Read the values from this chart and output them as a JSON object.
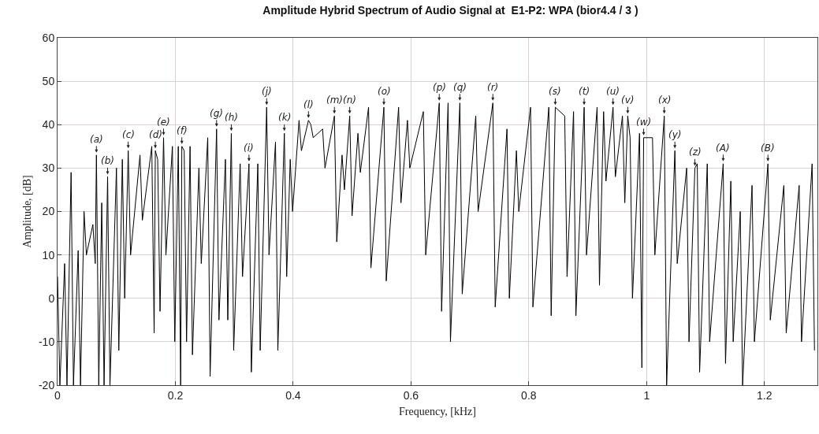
{
  "chart_data": {
    "type": "line",
    "title": "Amplitude Hybrid Spectrum of Audio Signal at  E1-P2: WPA (bior4.4 / 3 )",
    "xlabel": "Frequency, [kHz]",
    "ylabel": "Amplitude, [dB]",
    "xlim": [
      0,
      1.29
    ],
    "ylim": [
      -20,
      60
    ],
    "xticks": [
      0,
      0.2,
      0.4,
      0.6,
      0.8,
      1,
      1.2
    ],
    "yticks": [
      -20,
      -10,
      0,
      10,
      20,
      30,
      40,
      50,
      60
    ],
    "grid": true,
    "line_style": "solid",
    "series": [
      {
        "color": "#000000",
        "x": [
          0,
          0.004,
          0.012,
          0.016,
          0.023,
          0.027,
          0.035,
          0.039,
          0.045,
          0.049,
          0.06,
          0.064,
          0.066,
          0.07,
          0.075,
          0.079,
          0.085,
          0.089,
          0.1,
          0.104,
          0.11,
          0.114,
          0.12,
          0.124,
          0.14,
          0.144,
          0.16,
          0.164,
          0.166,
          0.17,
          0.174,
          0.18,
          0.184,
          0.195,
          0.199,
          0.205,
          0.209,
          0.211,
          0.215,
          0.219,
          0.225,
          0.229,
          0.24,
          0.244,
          0.255,
          0.259,
          0.27,
          0.274,
          0.285,
          0.289,
          0.295,
          0.299,
          0.31,
          0.314,
          0.325,
          0.329,
          0.34,
          0.344,
          0.355,
          0.359,
          0.37,
          0.374,
          0.385,
          0.389,
          0.395,
          0.399,
          0.41,
          0.414,
          0.426,
          0.43,
          0.434,
          0.45,
          0.454,
          0.47,
          0.474,
          0.483,
          0.487,
          0.496,
          0.5,
          0.51,
          0.514,
          0.528,
          0.532,
          0.554,
          0.558,
          0.579,
          0.583,
          0.594,
          0.598,
          0.621,
          0.625,
          0.648,
          0.652,
          0.663,
          0.667,
          0.683,
          0.687,
          0.71,
          0.714,
          0.739,
          0.743,
          0.763,
          0.767,
          0.779,
          0.783,
          0.803,
          0.807,
          0.834,
          0.838,
          0.845,
          0.861,
          0.865,
          0.876,
          0.88,
          0.894,
          0.898,
          0.916,
          0.92,
          0.927,
          0.931,
          0.943,
          0.947,
          0.959,
          0.963,
          0.968,
          0.972,
          0.976,
          0.988,
          0.992,
          0.995,
          1.01,
          1.014,
          1.03,
          1.034,
          1.048,
          1.052,
          1.068,
          1.072,
          1.082,
          1.086,
          1.09,
          1.103,
          1.107,
          1.13,
          1.134,
          1.143,
          1.147,
          1.159,
          1.163,
          1.179,
          1.183,
          1.206,
          1.21,
          1.233,
          1.237,
          1.259,
          1.263,
          1.281,
          1.285
        ],
        "values": [
          5,
          -20,
          8,
          -20,
          29,
          -20,
          11,
          -20,
          20,
          10,
          17,
          8,
          33,
          -20,
          22,
          -20,
          28,
          -20,
          30,
          -12,
          32,
          0,
          34,
          10,
          33,
          18,
          35,
          -8,
          34,
          32,
          -3,
          37,
          10,
          35,
          -10,
          35,
          -20,
          35,
          34,
          -10,
          35,
          -13,
          30,
          8,
          37,
          -18,
          39,
          -5,
          32,
          -5,
          38,
          -12,
          31,
          5,
          31,
          -17,
          31,
          -12,
          44,
          10,
          36,
          -12,
          38,
          5,
          32,
          20,
          41,
          34,
          41,
          40,
          37,
          39,
          30,
          42,
          13,
          33,
          25,
          42,
          19,
          38,
          29,
          44,
          7,
          44,
          4,
          44,
          22,
          41,
          30,
          43,
          10,
          45,
          -3,
          45,
          -10,
          45,
          1,
          42,
          20,
          45,
          -2,
          39,
          0,
          34,
          20,
          44,
          -2,
          44,
          -4,
          44,
          42,
          5,
          43,
          -4,
          44,
          10,
          44,
          3,
          43,
          27,
          44,
          28,
          42,
          22,
          42,
          37,
          0,
          38,
          -16,
          37,
          37,
          10,
          42,
          -20,
          34,
          8,
          30,
          -10,
          30,
          31,
          -17,
          31,
          -10,
          31,
          -15,
          27,
          -10,
          20,
          -20,
          26,
          -10,
          31,
          -5,
          26,
          -8,
          26,
          -10,
          31,
          -12
        ]
      }
    ],
    "annotations": [
      {
        "text": "(a)",
        "x": 0.066,
        "y": 33
      },
      {
        "text": "(b)",
        "x": 0.085,
        "y": 28
      },
      {
        "text": "(c)",
        "x": 0.12,
        "y": 34
      },
      {
        "text": "(d)",
        "x": 0.166,
        "y": 34
      },
      {
        "text": "(e)",
        "x": 0.18,
        "y": 37
      },
      {
        "text": "(f)",
        "x": 0.211,
        "y": 35
      },
      {
        "text": "(g)",
        "x": 0.27,
        "y": 39
      },
      {
        "text": "(h)",
        "x": 0.295,
        "y": 38
      },
      {
        "text": "(i)",
        "x": 0.325,
        "y": 31
      },
      {
        "text": "(j)",
        "x": 0.355,
        "y": 44
      },
      {
        "text": "(k)",
        "x": 0.385,
        "y": 38
      },
      {
        "text": "(l)",
        "x": 0.426,
        "y": 41
      },
      {
        "text": "(m)",
        "x": 0.47,
        "y": 42
      },
      {
        "text": "(n)",
        "x": 0.496,
        "y": 42
      },
      {
        "text": "(o)",
        "x": 0.554,
        "y": 44
      },
      {
        "text": "(p)",
        "x": 0.648,
        "y": 45
      },
      {
        "text": "(q)",
        "x": 0.683,
        "y": 45
      },
      {
        "text": "(r)",
        "x": 0.739,
        "y": 45
      },
      {
        "text": "(s)",
        "x": 0.845,
        "y": 44
      },
      {
        "text": "(t)",
        "x": 0.894,
        "y": 44
      },
      {
        "text": "(u)",
        "x": 0.943,
        "y": 44
      },
      {
        "text": "(v)",
        "x": 0.968,
        "y": 42
      },
      {
        "text": "(w)",
        "x": 0.995,
        "y": 37
      },
      {
        "text": "(x)",
        "x": 1.03,
        "y": 42
      },
      {
        "text": "(y)",
        "x": 1.048,
        "y": 34
      },
      {
        "text": "(z)",
        "x": 1.082,
        "y": 30
      },
      {
        "text": "(A)",
        "x": 1.13,
        "y": 31
      },
      {
        "text": "(B)",
        "x": 1.206,
        "y": 31
      }
    ]
  }
}
